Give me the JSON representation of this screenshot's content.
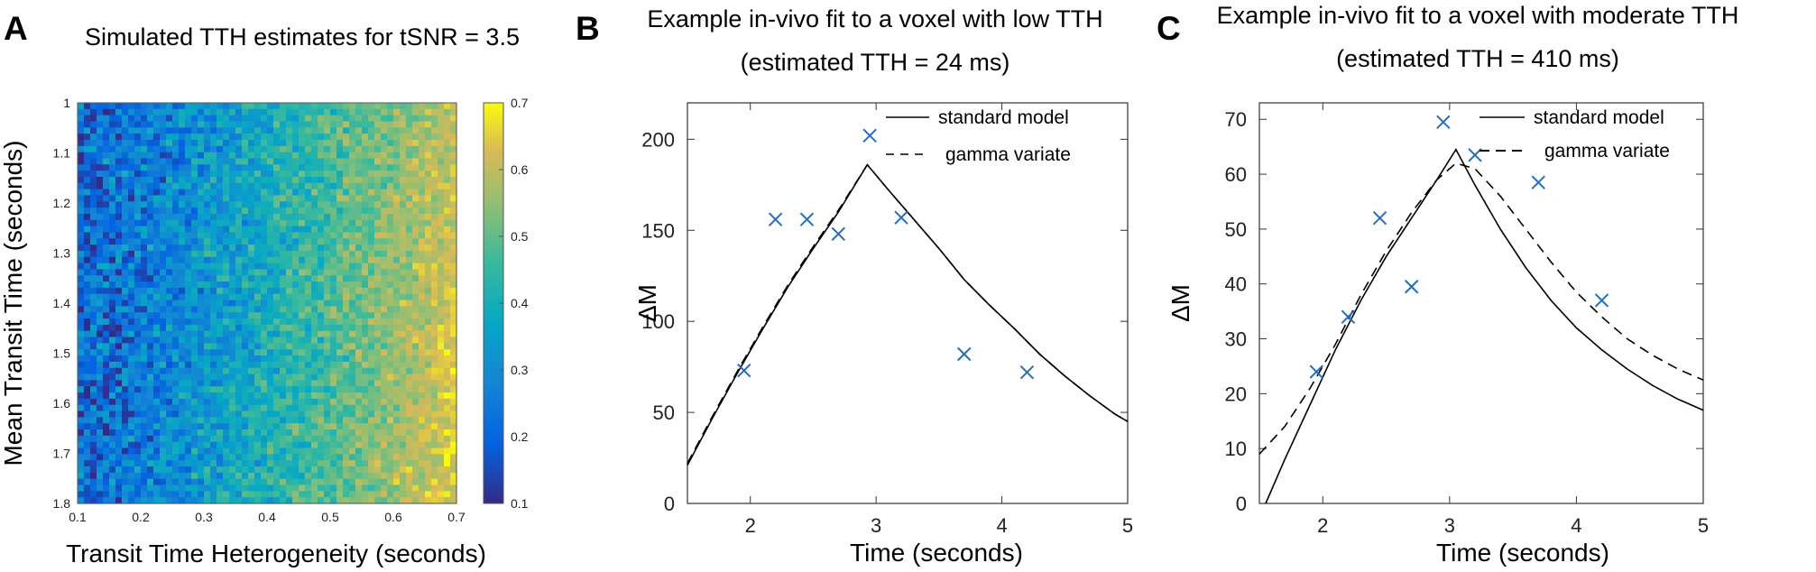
{
  "panels": {
    "A": {
      "letter": "A",
      "title": "Simulated TTH estimates for tSNR = 3.5",
      "xlabel": "Transit Time Heterogeneity (seconds)",
      "ylabel": "Mean Transit Time (seconds)"
    },
    "B": {
      "letter": "B",
      "title_line1": "Example in-vivo fit to a voxel with low TTH",
      "title_line2": "(estimated TTH = 24 ms)",
      "xlabel": "Time (seconds)",
      "ylabel": "ΔM",
      "legend": [
        "standard model",
        "gamma variate"
      ]
    },
    "C": {
      "letter": "C",
      "title_line1": "Example in-vivo fit to a voxel with moderate TTH",
      "title_line2": "(estimated TTH = 410 ms)",
      "xlabel": "Time (seconds)",
      "ylabel": "ΔM",
      "legend": [
        "standard model",
        "gamma variate"
      ]
    }
  },
  "chart_data": [
    {
      "type": "heatmap",
      "title": "Simulated TTH estimates for tSNR = 3.5",
      "xlabel": "Transit Time Heterogeneity (seconds)",
      "ylabel": "Mean Transit Time (seconds)",
      "x_range": [
        0.1,
        0.7
      ],
      "y_range": [
        1.0,
        1.8
      ],
      "x_ticks": [
        "0.1",
        "0.2",
        "0.3",
        "0.4",
        "0.5",
        "0.6",
        "0.7"
      ],
      "y_ticks": [
        "1",
        "1.1",
        "1.2",
        "1.3",
        "1.4",
        "1.5",
        "1.6",
        "1.7",
        "1.8"
      ],
      "colorbar": {
        "range": [
          0.1,
          0.7
        ],
        "ticks": [
          "0.1",
          "0.2",
          "0.3",
          "0.4",
          "0.5",
          "0.6",
          "0.7"
        ],
        "colormap": "parula"
      },
      "grid_resolution": [
        60,
        65
      ],
      "trend": "noisy; values increase with x from ~0.2 at x=0.1 to ~0.6 at x=0.7, with some increase toward larger y"
    },
    {
      "type": "line",
      "title": "Example in-vivo fit to a voxel with low TTH",
      "subtitle": "(estimated TTH = 24 ms)",
      "xlabel": "Time (seconds)",
      "ylabel": "ΔM",
      "xlim": [
        1.5,
        5
      ],
      "ylim": [
        0,
        220
      ],
      "x_ticks": [
        2,
        3,
        4,
        5
      ],
      "y_ticks": [
        0,
        50,
        100,
        150,
        200
      ],
      "legend_position": "top-right",
      "series": [
        {
          "name": "standard model",
          "style": "solid",
          "x": [
            1.5,
            1.7,
            1.9,
            2.1,
            2.3,
            2.5,
            2.7,
            2.93,
            3.1,
            3.3,
            3.5,
            3.7,
            3.9,
            4.1,
            4.3,
            4.5,
            4.7,
            4.9,
            5.0
          ],
          "y": [
            21,
            47,
            72,
            96,
            119,
            140,
            160,
            186,
            172,
            156,
            140,
            123,
            109,
            96,
            82,
            70,
            59,
            49,
            45
          ]
        },
        {
          "name": "gamma variate",
          "style": "dashed",
          "x": [
            1.5,
            1.7,
            1.9,
            2.1,
            2.3,
            2.5,
            2.7,
            2.93,
            3.1,
            3.3,
            3.5,
            3.7,
            3.9,
            4.1,
            4.3,
            4.5,
            4.7,
            4.9,
            5.0
          ],
          "y": [
            22,
            48,
            73,
            97,
            120,
            141,
            161,
            186,
            172,
            156,
            140,
            123,
            109,
            96,
            82,
            70,
            59,
            49,
            45
          ]
        },
        {
          "name": "data",
          "style": "x-marker",
          "x": [
            1.95,
            2.2,
            2.45,
            2.7,
            2.95,
            3.2,
            3.7,
            4.2
          ],
          "y": [
            73,
            156,
            156,
            148,
            202,
            157,
            82,
            72
          ]
        }
      ]
    },
    {
      "type": "line",
      "title": "Example in-vivo fit to a voxel with moderate TTH",
      "subtitle": "(estimated TTH = 410 ms)",
      "xlabel": "Time (seconds)",
      "ylabel": "ΔM",
      "xlim": [
        1.5,
        5
      ],
      "ylim": [
        0,
        73
      ],
      "x_ticks": [
        2,
        3,
        4,
        5
      ],
      "y_ticks": [
        0,
        10,
        20,
        30,
        40,
        50,
        60,
        70
      ],
      "legend_position": "top-right",
      "series": [
        {
          "name": "standard model",
          "style": "solid",
          "x": [
            1.55,
            1.7,
            1.9,
            2.1,
            2.3,
            2.5,
            2.7,
            2.9,
            3.05,
            3.2,
            3.4,
            3.6,
            3.8,
            4.0,
            4.2,
            4.4,
            4.6,
            4.8,
            5.0
          ],
          "y": [
            0,
            8,
            18,
            28,
            37,
            45,
            52,
            59,
            64.5,
            58,
            50,
            43,
            37,
            32,
            28,
            24.5,
            21.5,
            19,
            17
          ]
        },
        {
          "name": "gamma variate",
          "style": "dashed",
          "x": [
            1.5,
            1.7,
            1.9,
            2.1,
            2.3,
            2.5,
            2.7,
            2.9,
            3.05,
            3.2,
            3.4,
            3.6,
            3.8,
            4.0,
            4.2,
            4.4,
            4.6,
            4.8,
            5.0
          ],
          "y": [
            9,
            14,
            21,
            29,
            38,
            46,
            53,
            59,
            62,
            61,
            56,
            50,
            44,
            38.5,
            34,
            30,
            27,
            24.5,
            22.5
          ]
        },
        {
          "name": "data",
          "style": "x-marker",
          "x": [
            1.95,
            2.2,
            2.45,
            2.7,
            2.95,
            3.2,
            3.7,
            4.2
          ],
          "y": [
            24,
            34,
            52,
            39.5,
            69.5,
            63.5,
            58.5,
            37
          ]
        }
      ]
    }
  ]
}
